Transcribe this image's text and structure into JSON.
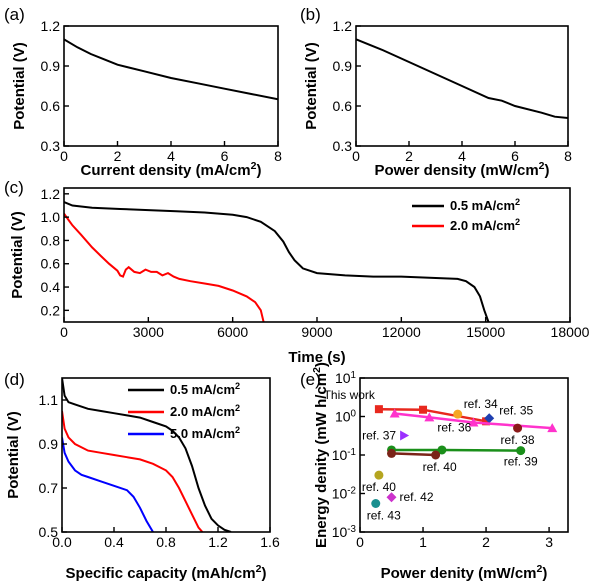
{
  "chart_data": [
    {
      "id": "a",
      "panel_label": "(a)",
      "type": "line",
      "xlabel": "Current density (mA/cm²)",
      "ylabel": "Potential (V)",
      "xlim": [
        0,
        8
      ],
      "ylim": [
        0.3,
        1.2
      ],
      "xticks": [
        0,
        2,
        4,
        6,
        8
      ],
      "yticks": [
        0.3,
        0.6,
        0.9,
        1.2
      ],
      "ytick_labels": [
        "0.3",
        "0.6",
        "0.9",
        "1.2"
      ],
      "series": [
        {
          "color": "#000000",
          "x": [
            0,
            0.5,
            1,
            1.5,
            2,
            3,
            4,
            5,
            6,
            7,
            8
          ],
          "y": [
            1.1,
            1.04,
            0.99,
            0.95,
            0.91,
            0.86,
            0.81,
            0.77,
            0.73,
            0.69,
            0.65
          ]
        }
      ]
    },
    {
      "id": "b",
      "panel_label": "(b)",
      "type": "line",
      "xlabel": "Power density (mW/cm²)",
      "ylabel": "Potential (V)",
      "xlim": [
        0,
        8
      ],
      "ylim": [
        0.3,
        1.2
      ],
      "xticks": [
        0,
        2,
        4,
        6,
        8
      ],
      "yticks": [
        0.3,
        0.6,
        0.9,
        1.2
      ],
      "ytick_labels": [
        "0.3",
        "0.6",
        "0.9",
        "1.2"
      ],
      "series": [
        {
          "color": "#000000",
          "x": [
            0,
            0.5,
            1,
            2,
            3,
            4,
            5,
            5.5,
            6,
            7,
            7.5,
            8
          ],
          "y": [
            1.1,
            1.06,
            1.02,
            0.93,
            0.84,
            0.75,
            0.66,
            0.64,
            0.6,
            0.55,
            0.52,
            0.51
          ]
        }
      ]
    },
    {
      "id": "c",
      "panel_label": "(c)",
      "type": "line",
      "xlabel": "Time (s)",
      "ylabel": "Potential (V)",
      "xlim": [
        0,
        18000
      ],
      "ylim": [
        0.1,
        1.25
      ],
      "xticks": [
        0,
        3000,
        6000,
        9000,
        12000,
        15000,
        18000
      ],
      "yticks": [
        0.2,
        0.4,
        0.6,
        0.8,
        1.0,
        1.2
      ],
      "ytick_labels": [
        "0.2",
        "0.4",
        "0.6",
        "0.8",
        "1.0",
        "1.2"
      ],
      "legend_position": "top-right",
      "series": [
        {
          "name": "0.5 mA/cm²",
          "color": "#000000",
          "x": [
            0,
            300,
            1000,
            2000,
            3000,
            4000,
            5000,
            6000,
            6500,
            7000,
            7500,
            7800,
            8000,
            8200,
            8500,
            9000,
            10000,
            11000,
            12000,
            13000,
            14000,
            14300,
            14600,
            14800,
            14950,
            15100
          ],
          "y": [
            1.13,
            1.1,
            1.08,
            1.07,
            1.06,
            1.05,
            1.04,
            1.02,
            1.0,
            0.96,
            0.88,
            0.79,
            0.7,
            0.63,
            0.56,
            0.52,
            0.5,
            0.49,
            0.49,
            0.48,
            0.47,
            0.45,
            0.4,
            0.32,
            0.2,
            0.1
          ]
        },
        {
          "name": "2.0 mA/cm²",
          "color": "#ff0000",
          "x": [
            0,
            150,
            300,
            600,
            1000,
            1300,
            1600,
            1900,
            2000,
            2100,
            2200,
            2300,
            2500,
            2700,
            2900,
            3100,
            3300,
            3500,
            3700,
            3900,
            4100,
            4500,
            5000,
            5500,
            6000,
            6500,
            6800,
            7000,
            7100
          ],
          "y": [
            1.03,
            0.98,
            0.93,
            0.85,
            0.74,
            0.67,
            0.6,
            0.54,
            0.5,
            0.49,
            0.55,
            0.57,
            0.53,
            0.52,
            0.55,
            0.53,
            0.53,
            0.5,
            0.52,
            0.49,
            0.47,
            0.45,
            0.43,
            0.41,
            0.37,
            0.32,
            0.27,
            0.2,
            0.1
          ]
        }
      ]
    },
    {
      "id": "d",
      "panel_label": "(d)",
      "type": "line",
      "xlabel": "Specific capacity (mAh/cm²)",
      "ylabel": "Potential (V)",
      "xlim": [
        0,
        1.6
      ],
      "ylim": [
        0.5,
        1.2
      ],
      "xticks": [
        0,
        0.4,
        0.8,
        1.2,
        1.6
      ],
      "xtick_labels": [
        "0.0",
        "0.4",
        "0.8",
        "1.2",
        "1.6"
      ],
      "yticks": [
        0.5,
        0.7,
        0.9,
        1.1
      ],
      "ytick_labels": [
        "0.5",
        "0.7",
        "0.9",
        "1.1"
      ],
      "legend_position": "top-right",
      "series": [
        {
          "name": "0.5 mA/cm²",
          "color": "#000000",
          "x": [
            0,
            0.02,
            0.05,
            0.1,
            0.2,
            0.3,
            0.4,
            0.5,
            0.6,
            0.7,
            0.8,
            0.85,
            0.9,
            0.95,
            1.0,
            1.05,
            1.1,
            1.15,
            1.2,
            1.25,
            1.3
          ],
          "y": [
            1.2,
            1.12,
            1.09,
            1.08,
            1.06,
            1.05,
            1.04,
            1.03,
            1.02,
            1.0,
            0.98,
            0.96,
            0.93,
            0.88,
            0.8,
            0.7,
            0.62,
            0.56,
            0.53,
            0.51,
            0.5
          ]
        },
        {
          "name": "2.0 mA/cm²",
          "color": "#ff0000",
          "x": [
            0,
            0.02,
            0.05,
            0.1,
            0.2,
            0.3,
            0.4,
            0.5,
            0.6,
            0.7,
            0.8,
            0.85,
            0.9,
            0.95,
            1.0,
            1.05,
            1.08
          ],
          "y": [
            1.05,
            0.97,
            0.93,
            0.9,
            0.87,
            0.86,
            0.85,
            0.84,
            0.83,
            0.81,
            0.78,
            0.75,
            0.7,
            0.64,
            0.58,
            0.52,
            0.5
          ]
        },
        {
          "name": "5.0 mA/cm²",
          "color": "#0000ff",
          "x": [
            0,
            0.02,
            0.05,
            0.1,
            0.15,
            0.2,
            0.3,
            0.4,
            0.5,
            0.55,
            0.6,
            0.65,
            0.7
          ],
          "y": [
            0.93,
            0.86,
            0.82,
            0.78,
            0.76,
            0.75,
            0.73,
            0.71,
            0.69,
            0.66,
            0.61,
            0.55,
            0.5
          ]
        }
      ]
    },
    {
      "id": "e",
      "panel_label": "(e)",
      "type": "scatter",
      "xlabel": "Power denity (mW/cm²)",
      "ylabel": "Energy denity (mW h/cm²)",
      "xlim": [
        0,
        3.3
      ],
      "xticks": [
        0,
        1,
        2,
        3
      ],
      "yscale": "log",
      "ylim_exp": [
        -3,
        1
      ],
      "yticks_exp": [
        -3,
        -2,
        -1,
        0,
        1
      ],
      "ytick_labels": [
        "10⁻³",
        "10⁻²",
        "10⁻¹",
        "10⁰",
        "10¹"
      ],
      "series": [
        {
          "label": "This work",
          "color": "#e8281e",
          "marker": "square",
          "x": [
            0.3,
            1.0,
            2.0
          ],
          "y": [
            1.55,
            1.5,
            0.75
          ]
        },
        {
          "label": "ref. 34",
          "color": "#f5a623",
          "marker": "circle",
          "x": [
            1.55
          ],
          "y": [
            1.15
          ]
        },
        {
          "label": "ref. 35",
          "color": "#1f3fb0",
          "marker": "diamond",
          "x": [
            2.05
          ],
          "y": [
            0.9
          ]
        },
        {
          "label": "ref. 36",
          "color": "#ff33cc",
          "marker": "triangle-up",
          "x": [
            0.55,
            1.1,
            1.8,
            3.05
          ],
          "y": [
            1.2,
            0.95,
            0.7,
            0.5
          ]
        },
        {
          "label": "ref. 37",
          "color": "#9b30ff",
          "marker": "triangle-right",
          "x": [
            0.7
          ],
          "y": [
            0.32
          ]
        },
        {
          "label": "ref. 38",
          "color": "#8b1a1a",
          "marker": "circle",
          "x": [
            2.5
          ],
          "y": [
            0.5
          ]
        },
        {
          "label": "ref. 39",
          "color": "#1a8f1a",
          "marker": "circle",
          "x": [
            0.5,
            1.3,
            2.55
          ],
          "y": [
            0.135,
            0.135,
            0.13
          ]
        },
        {
          "label": "ref. 40",
          "color": "#7a2418",
          "marker": "circle",
          "x": [
            0.5,
            1.2
          ],
          "y": [
            0.11,
            0.1
          ]
        },
        {
          "label": "ref. 40",
          "color": "#b5a520",
          "marker": "circle",
          "x": [
            0.3
          ],
          "y": [
            0.03
          ]
        },
        {
          "label": "ref. 42",
          "color": "#cc33cc",
          "marker": "diamond",
          "x": [
            0.5
          ],
          "y": [
            0.008
          ]
        },
        {
          "label": "ref. 43",
          "color": "#1a9090",
          "marker": "circle",
          "x": [
            0.25
          ],
          "y": [
            0.0055
          ]
        }
      ]
    }
  ]
}
